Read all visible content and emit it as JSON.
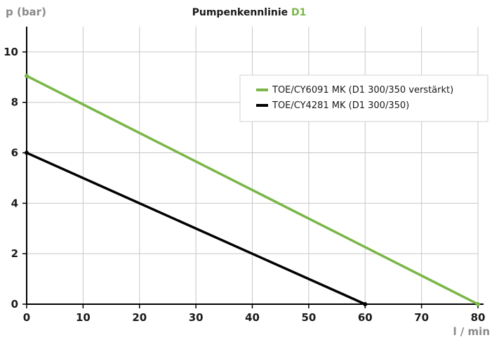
{
  "chart_data": {
    "type": "line",
    "title": "Pumpenkennlinie",
    "title_highlight": "D1",
    "xlabel": "l / min",
    "ylabel": "p (bar)",
    "xlim": [
      0,
      80
    ],
    "ylim": [
      0,
      11
    ],
    "x_ticks": [
      0,
      10,
      20,
      30,
      40,
      50,
      60,
      70,
      80
    ],
    "y_ticks": [
      0,
      2,
      4,
      6,
      8,
      10
    ],
    "grid": true,
    "legend_position": "top-right",
    "series": [
      {
        "name": "TOE/CY6091 MK (D1 300/350 verstärkt)",
        "color": "#7ab648",
        "x": [
          0,
          80
        ],
        "y": [
          9.05,
          0
        ]
      },
      {
        "name": "TOE/CY4281 MK (D1 300/350)",
        "color": "#000000",
        "x": [
          0,
          60
        ],
        "y": [
          6.0,
          0
        ]
      }
    ]
  },
  "colors": {
    "grid": "#c8c8c8",
    "axis": "#000000",
    "highlight": "#7ab648"
  }
}
